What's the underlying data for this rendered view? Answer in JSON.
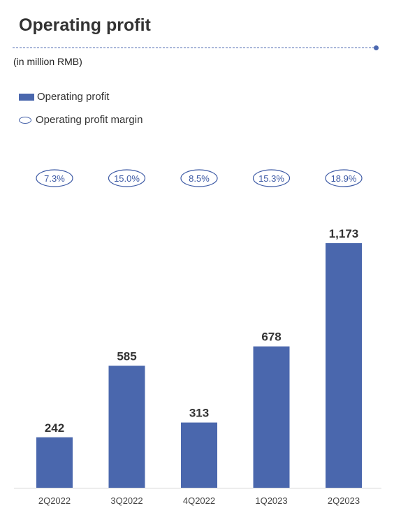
{
  "header": {
    "title": "Operating profit",
    "unit_note": "(in million RMB)"
  },
  "legend": {
    "items": [
      {
        "label": "Operating profit",
        "marker": "bar"
      },
      {
        "label": "Operating profit margin",
        "marker": "ellipse"
      }
    ]
  },
  "colors": {
    "bar": "#4a67ad",
    "margin_outline": "#3d5aa5",
    "margin_text": "#3d5aa5",
    "accent": "#4b68b0"
  },
  "chart_data": {
    "type": "bar",
    "categories": [
      "2Q2022",
      "3Q2022",
      "4Q2022",
      "1Q2023",
      "2Q2023"
    ],
    "series": [
      {
        "name": "Operating profit",
        "values": [
          242,
          585,
          313,
          678,
          1173
        ],
        "labels": [
          "242",
          "585",
          "313",
          "678",
          "1,173"
        ]
      },
      {
        "name": "Operating profit margin",
        "values": [
          7.3,
          15.0,
          8.5,
          15.3,
          18.9
        ],
        "labels": [
          "7.3%",
          "15.0%",
          "8.5%",
          "15.3%",
          "18.9%"
        ]
      }
    ],
    "ylim": [
      0,
      1173
    ],
    "grid": false,
    "legend_position": "top-left"
  }
}
